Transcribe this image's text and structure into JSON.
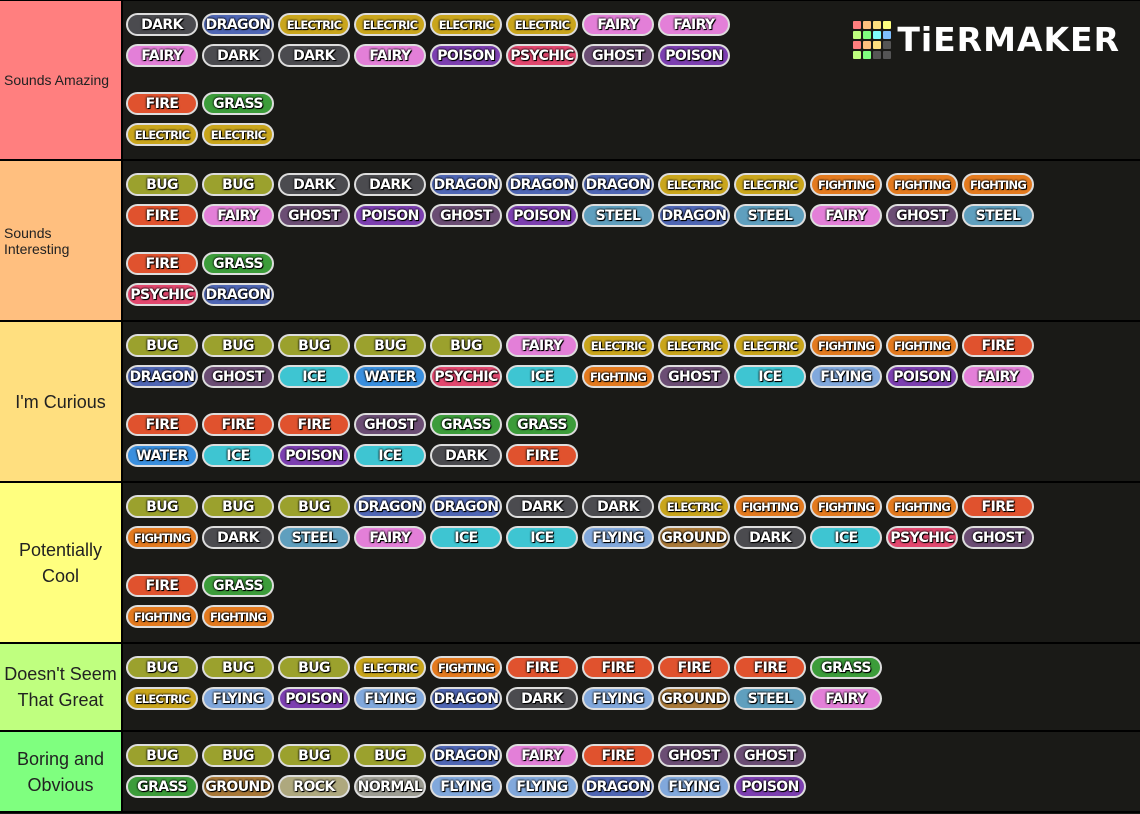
{
  "logo": {
    "text": "TiERMAKER"
  },
  "type_colors": {
    "DARK": "#4b4b4f",
    "DRAGON": "#4f66b4",
    "ELECTRIC": "#c9a51c",
    "FAIRY": "#e37fd8",
    "POISON": "#7c3fb0",
    "PSYCHIC": "#e2476e",
    "GHOST": "#6b4d74",
    "FIRE": "#e0522e",
    "GRASS": "#3c9c3a",
    "BUG": "#9ba12d",
    "STEEL": "#5f9fbe",
    "FIGHTING": "#e37a1f",
    "ICE": "#3ec5d2",
    "WATER": "#3a8fde",
    "FLYING": "#81a8dc",
    "GROUND": "#a87838",
    "ROCK": "#aea87e",
    "NORMAL": "#9c9c92"
  },
  "tiers": [
    {
      "label": "Sounds Amazing",
      "color": "#ff7f7f",
      "rows": [
        [
          "DARK",
          "DRAGON",
          "ELECTRIC",
          "ELECTRIC",
          "ELECTRIC",
          "ELECTRIC",
          "FAIRY",
          "FAIRY"
        ],
        [
          "FAIRY",
          "DARK",
          "DARK",
          "FAIRY",
          "POISON",
          "PSYCHIC",
          "GHOST",
          "POISON"
        ],
        [
          "FIRE",
          "GRASS"
        ],
        [
          "ELECTRIC",
          "ELECTRIC"
        ]
      ]
    },
    {
      "label": "Sounds Interesting",
      "color": "#ffbf7f",
      "rows": [
        [
          "BUG",
          "BUG",
          "DARK",
          "DARK",
          "DRAGON",
          "DRAGON",
          "DRAGON",
          "ELECTRIC",
          "ELECTRIC",
          "FIGHTING",
          "FIGHTING",
          "FIGHTING"
        ],
        [
          "FIRE",
          "FAIRY",
          "GHOST",
          "POISON",
          "GHOST",
          "POISON",
          "STEEL",
          "DRAGON",
          "STEEL",
          "FAIRY",
          "GHOST",
          "STEEL"
        ],
        [
          "FIRE",
          "GRASS"
        ],
        [
          "PSYCHIC",
          "DRAGON"
        ]
      ]
    },
    {
      "label": "I'm Curious",
      "color": "#ffdf7f",
      "rows": [
        [
          "BUG",
          "BUG",
          "BUG",
          "BUG",
          "BUG",
          "FAIRY",
          "ELECTRIC",
          "ELECTRIC",
          "ELECTRIC",
          "FIGHTING",
          "FIGHTING",
          "FIRE"
        ],
        [
          "DRAGON",
          "GHOST",
          "ICE",
          "WATER",
          "PSYCHIC",
          "ICE",
          "FIGHTING",
          "GHOST",
          "ICE",
          "FLYING",
          "POISON",
          "FAIRY"
        ],
        [
          "FIRE",
          "FIRE",
          "FIRE",
          "GHOST",
          "GRASS",
          "GRASS"
        ],
        [
          "WATER",
          "ICE",
          "POISON",
          "ICE",
          "DARK",
          "FIRE"
        ]
      ]
    },
    {
      "label": "Potentially Cool",
      "color": "#ffff7f",
      "rows": [
        [
          "BUG",
          "BUG",
          "BUG",
          "DRAGON",
          "DRAGON",
          "DARK",
          "DARK",
          "ELECTRIC",
          "FIGHTING",
          "FIGHTING",
          "FIGHTING",
          "FIRE"
        ],
        [
          "FIGHTING",
          "DARK",
          "STEEL",
          "FAIRY",
          "ICE",
          "ICE",
          "FLYING",
          "GROUND",
          "DARK",
          "ICE",
          "PSYCHIC",
          "GHOST"
        ],
        [
          "FIRE",
          "GRASS"
        ],
        [
          "FIGHTING",
          "FIGHTING"
        ]
      ]
    },
    {
      "label": "Doesn't Seem That Great",
      "color": "#bfff7f",
      "rows": [
        [
          "BUG",
          "BUG",
          "BUG",
          "ELECTRIC",
          "FIGHTING",
          "FIRE",
          "FIRE",
          "FIRE",
          "FIRE",
          "GRASS"
        ],
        [
          "ELECTRIC",
          "FLYING",
          "POISON",
          "FLYING",
          "DRAGON",
          "DARK",
          "FLYING",
          "GROUND",
          "STEEL",
          "FAIRY"
        ]
      ]
    },
    {
      "label": "Boring and Obvious",
      "color": "#7fff7f",
      "rows": [
        [
          "BUG",
          "BUG",
          "BUG",
          "BUG",
          "DRAGON",
          "FAIRY",
          "FIRE",
          "GHOST",
          "GHOST"
        ],
        [
          "GRASS",
          "GROUND",
          "ROCK",
          "NORMAL",
          "FLYING",
          "FLYING",
          "DRAGON",
          "FLYING",
          "POISON"
        ]
      ]
    }
  ]
}
